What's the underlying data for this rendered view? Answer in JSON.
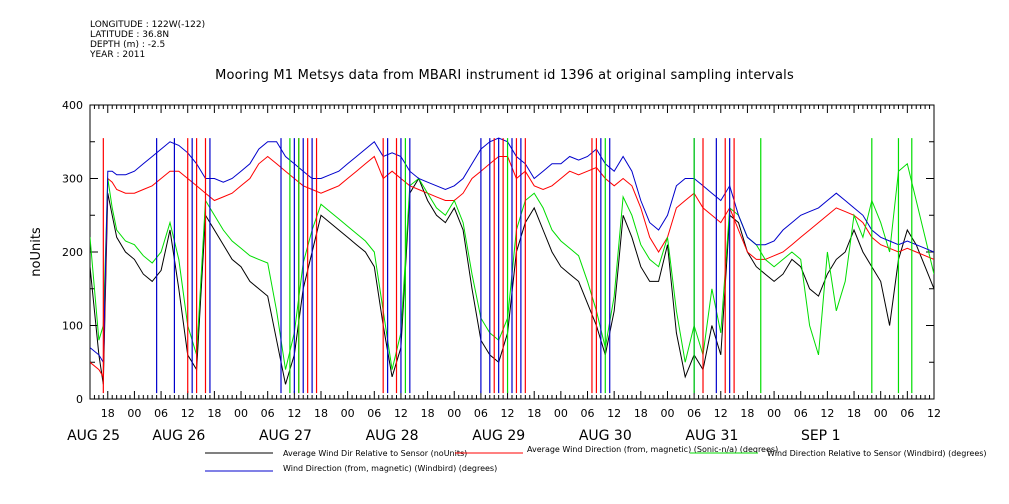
{
  "meta": {
    "longitude": "LONGITUDE : 122W(-122)",
    "latitude": "LATITUDE : 36.8N",
    "depth": "DEPTH (m) : -2.5",
    "year": "YEAR : 2011"
  },
  "chart_data": {
    "type": "line",
    "title": "Mooring M1 Metsys data from MBARI instrument id 1396 at original sampling intervals",
    "ylabel": "noUnits",
    "xlabel": "",
    "ylim": [
      0,
      400
    ],
    "xlim": [
      14,
      204
    ],
    "yticks": [
      0,
      100,
      200,
      300,
      400
    ],
    "x_unit": "hours since 2011-08-25 00:00",
    "hour_ticks": [
      {
        "x": 18,
        "label": "18"
      },
      {
        "x": 24,
        "label": "00"
      },
      {
        "x": 30,
        "label": "06"
      },
      {
        "x": 36,
        "label": "12"
      },
      {
        "x": 42,
        "label": "18"
      },
      {
        "x": 48,
        "label": "00"
      },
      {
        "x": 54,
        "label": "06"
      },
      {
        "x": 60,
        "label": "12"
      },
      {
        "x": 66,
        "label": "18"
      },
      {
        "x": 72,
        "label": "00"
      },
      {
        "x": 78,
        "label": "06"
      },
      {
        "x": 84,
        "label": "12"
      },
      {
        "x": 90,
        "label": "18"
      },
      {
        "x": 96,
        "label": "00"
      },
      {
        "x": 102,
        "label": "06"
      },
      {
        "x": 108,
        "label": "12"
      },
      {
        "x": 114,
        "label": "18"
      },
      {
        "x": 120,
        "label": "00"
      },
      {
        "x": 126,
        "label": "06"
      },
      {
        "x": 132,
        "label": "12"
      },
      {
        "x": 138,
        "label": "18"
      },
      {
        "x": 144,
        "label": "00"
      },
      {
        "x": 150,
        "label": "06"
      },
      {
        "x": 156,
        "label": "12"
      },
      {
        "x": 162,
        "label": "18"
      },
      {
        "x": 168,
        "label": "00"
      },
      {
        "x": 174,
        "label": "06"
      },
      {
        "x": 180,
        "label": "12"
      },
      {
        "x": 186,
        "label": "18"
      },
      {
        "x": 192,
        "label": "00"
      },
      {
        "x": 198,
        "label": "06"
      },
      {
        "x": 204,
        "label": "12"
      }
    ],
    "date_labels": [
      {
        "x": 14.8,
        "label": "AUG 25"
      },
      {
        "x": 34,
        "label": "AUG 26"
      },
      {
        "x": 58,
        "label": "AUG 27"
      },
      {
        "x": 82,
        "label": "AUG 28"
      },
      {
        "x": 106,
        "label": "AUG 29"
      },
      {
        "x": 130,
        "label": "AUG 30"
      },
      {
        "x": 154,
        "label": "AUG 31"
      },
      {
        "x": 178.5,
        "label": "SEP  1"
      }
    ],
    "series": [
      {
        "name": "Average Wind Dir Relative to Sensor (noUnits)",
        "color": "#000000",
        "x": [
          14,
          16,
          17,
          18,
          19,
          20,
          22,
          24,
          26,
          28,
          30,
          32,
          34,
          36,
          38,
          40,
          42,
          44,
          46,
          48,
          50,
          52,
          54,
          56,
          58,
          60,
          62,
          64,
          66,
          68,
          70,
          72,
          74,
          76,
          78,
          80,
          82,
          84,
          86,
          88,
          90,
          92,
          94,
          96,
          98,
          100,
          102,
          104,
          106,
          108,
          110,
          112,
          114,
          116,
          118,
          120,
          122,
          124,
          126,
          128,
          130,
          132,
          134,
          136,
          138,
          140,
          142,
          144,
          146,
          148,
          150,
          152,
          154,
          156,
          158,
          160,
          162,
          164,
          166,
          168,
          170,
          172,
          174,
          176,
          178,
          180,
          182,
          184,
          186,
          188,
          190,
          192,
          194,
          196,
          198,
          200,
          202,
          204
        ],
        "y": [
          180,
          60,
          20,
          280,
          250,
          220,
          200,
          190,
          170,
          160,
          175,
          230,
          150,
          60,
          40,
          250,
          230,
          210,
          190,
          180,
          160,
          150,
          140,
          80,
          20,
          60,
          150,
          200,
          250,
          240,
          230,
          220,
          210,
          200,
          180,
          100,
          30,
          70,
          280,
          300,
          270,
          250,
          240,
          260,
          230,
          150,
          80,
          60,
          50,
          90,
          200,
          240,
          260,
          230,
          200,
          180,
          170,
          160,
          130,
          100,
          60,
          120,
          250,
          220,
          180,
          160,
          160,
          210,
          90,
          30,
          60,
          40,
          100,
          60,
          250,
          240,
          200,
          180,
          170,
          160,
          170,
          190,
          180,
          150,
          140,
          170,
          190,
          200,
          230,
          200,
          180,
          160,
          100,
          190,
          230,
          210,
          180,
          150
        ]
      },
      {
        "name": "Average Wind Direction (from, magnetic) (Sonic-n/a) (degrees)",
        "color": "#ff0000",
        "x": [
          14,
          16,
          17,
          18,
          19,
          20,
          22,
          24,
          26,
          28,
          30,
          32,
          34,
          36,
          38,
          40,
          42,
          44,
          46,
          48,
          50,
          52,
          54,
          56,
          58,
          60,
          62,
          64,
          66,
          68,
          70,
          72,
          74,
          76,
          78,
          80,
          82,
          84,
          86,
          88,
          90,
          92,
          94,
          96,
          98,
          100,
          102,
          104,
          106,
          108,
          110,
          112,
          114,
          116,
          118,
          120,
          122,
          124,
          126,
          128,
          130,
          132,
          134,
          136,
          138,
          140,
          142,
          144,
          146,
          148,
          150,
          152,
          154,
          156,
          158,
          160,
          162,
          164,
          166,
          168,
          170,
          172,
          174,
          176,
          178,
          180,
          182,
          184,
          186,
          188,
          190,
          192,
          194,
          196,
          198,
          200,
          202,
          204
        ],
        "y": [
          50,
          40,
          30,
          300,
          295,
          285,
          280,
          280,
          285,
          290,
          300,
          310,
          310,
          300,
          290,
          280,
          270,
          275,
          280,
          290,
          300,
          320,
          330,
          320,
          310,
          300,
          290,
          285,
          280,
          285,
          290,
          300,
          310,
          320,
          330,
          300,
          310,
          300,
          290,
          285,
          280,
          275,
          270,
          270,
          280,
          300,
          310,
          320,
          330,
          330,
          300,
          310,
          290,
          285,
          290,
          300,
          310,
          305,
          310,
          315,
          300,
          290,
          300,
          290,
          260,
          220,
          200,
          220,
          260,
          270,
          280,
          260,
          250,
          240,
          260,
          230,
          200,
          190,
          190,
          195,
          200,
          210,
          220,
          230,
          240,
          250,
          260,
          255,
          250,
          240,
          220,
          210,
          205,
          200,
          205,
          200,
          195,
          190
        ]
      },
      {
        "name": "Wind Direction Relative to Sensor (Windbird) (degrees)",
        "color": "#00dd00",
        "x": [
          14,
          16,
          17,
          18,
          19,
          20,
          22,
          24,
          26,
          28,
          30,
          32,
          34,
          36,
          38,
          40,
          42,
          44,
          46,
          48,
          50,
          52,
          54,
          56,
          58,
          60,
          62,
          64,
          66,
          68,
          70,
          72,
          74,
          76,
          78,
          80,
          82,
          84,
          86,
          88,
          90,
          92,
          94,
          96,
          98,
          100,
          102,
          104,
          106,
          108,
          110,
          112,
          114,
          116,
          118,
          120,
          122,
          124,
          126,
          128,
          130,
          132,
          134,
          136,
          138,
          140,
          142,
          144,
          146,
          148,
          150,
          152,
          154,
          156,
          158,
          160,
          162,
          164,
          166,
          168,
          170,
          172,
          174,
          176,
          178,
          180,
          182,
          184,
          186,
          188,
          190,
          192,
          194,
          196,
          198,
          200,
          202,
          204
        ],
        "y": [
          220,
          80,
          100,
          300,
          260,
          230,
          215,
          210,
          195,
          185,
          200,
          240,
          190,
          100,
          60,
          270,
          250,
          230,
          215,
          205,
          195,
          190,
          185,
          120,
          40,
          90,
          185,
          230,
          265,
          255,
          245,
          235,
          225,
          215,
          200,
          120,
          40,
          90,
          290,
          300,
          280,
          260,
          250,
          270,
          240,
          170,
          110,
          90,
          80,
          110,
          230,
          270,
          280,
          260,
          230,
          215,
          205,
          195,
          160,
          120,
          70,
          140,
          275,
          250,
          210,
          190,
          180,
          220,
          120,
          50,
          100,
          60,
          150,
          90,
          260,
          250,
          220,
          210,
          190,
          180,
          190,
          200,
          190,
          100,
          60,
          200,
          120,
          160,
          250,
          220,
          270,
          240,
          200,
          310,
          320,
          270,
          220,
          170
        ]
      },
      {
        "name": "Wind Direction (from, magnetic) (Windbird) (degrees)",
        "color": "#0000cc",
        "x": [
          14,
          16,
          17,
          18,
          19,
          20,
          22,
          24,
          26,
          28,
          30,
          32,
          34,
          36,
          38,
          40,
          42,
          44,
          46,
          48,
          50,
          52,
          54,
          56,
          58,
          60,
          62,
          64,
          66,
          68,
          70,
          72,
          74,
          76,
          78,
          80,
          82,
          84,
          86,
          88,
          90,
          92,
          94,
          96,
          98,
          100,
          102,
          104,
          106,
          108,
          110,
          112,
          114,
          116,
          118,
          120,
          122,
          124,
          126,
          128,
          130,
          132,
          134,
          136,
          138,
          140,
          142,
          144,
          146,
          148,
          150,
          152,
          154,
          156,
          158,
          160,
          162,
          164,
          166,
          168,
          170,
          172,
          174,
          176,
          178,
          180,
          182,
          184,
          186,
          188,
          190,
          192,
          194,
          196,
          198,
          200,
          202,
          204
        ],
        "y": [
          70,
          60,
          50,
          310,
          310,
          305,
          305,
          310,
          320,
          330,
          340,
          350,
          345,
          335,
          320,
          300,
          300,
          295,
          300,
          310,
          320,
          340,
          350,
          350,
          330,
          320,
          310,
          300,
          300,
          305,
          310,
          320,
          330,
          340,
          350,
          330,
          335,
          330,
          310,
          300,
          295,
          290,
          285,
          290,
          300,
          320,
          340,
          350,
          355,
          350,
          330,
          320,
          300,
          310,
          320,
          320,
          330,
          325,
          330,
          340,
          320,
          310,
          330,
          310,
          270,
          240,
          230,
          250,
          290,
          300,
          300,
          290,
          280,
          270,
          290,
          250,
          220,
          210,
          210,
          215,
          230,
          240,
          250,
          255,
          260,
          270,
          280,
          270,
          260,
          250,
          230,
          220,
          215,
          210,
          215,
          210,
          205,
          200
        ]
      }
    ],
    "spikes": [
      {
        "color": "#ff0000",
        "x": [
          17,
          36,
          38,
          40,
          61,
          63,
          65,
          80,
          83,
          105,
          107,
          110,
          112,
          127,
          128,
          152,
          157,
          159
        ]
      },
      {
        "color": "#0000cc",
        "x": [
          29,
          33,
          37,
          41,
          57,
          60,
          62,
          64,
          81,
          84,
          86,
          102,
          104,
          106,
          109,
          111,
          129,
          131,
          150,
          155,
          158
        ]
      },
      {
        "color": "#00dd00",
        "x": [
          59,
          61,
          85,
          108,
          130,
          150,
          165,
          190,
          196,
          199
        ]
      }
    ],
    "legend": [
      {
        "label": "Average Wind Dir Relative to Sensor (noUnits)",
        "color": "#000000"
      },
      {
        "label": "Average Wind Direction (from, magnetic) (Sonic-n/a) (degrees)",
        "color": "#ff0000"
      },
      {
        "label": "Wind Direction Relative to Sensor (Windbird) (degrees)",
        "color": "#00dd00"
      },
      {
        "label": "Wind Direction (from, magnetic) (Windbird) (degrees)",
        "color": "#0000cc"
      }
    ]
  }
}
